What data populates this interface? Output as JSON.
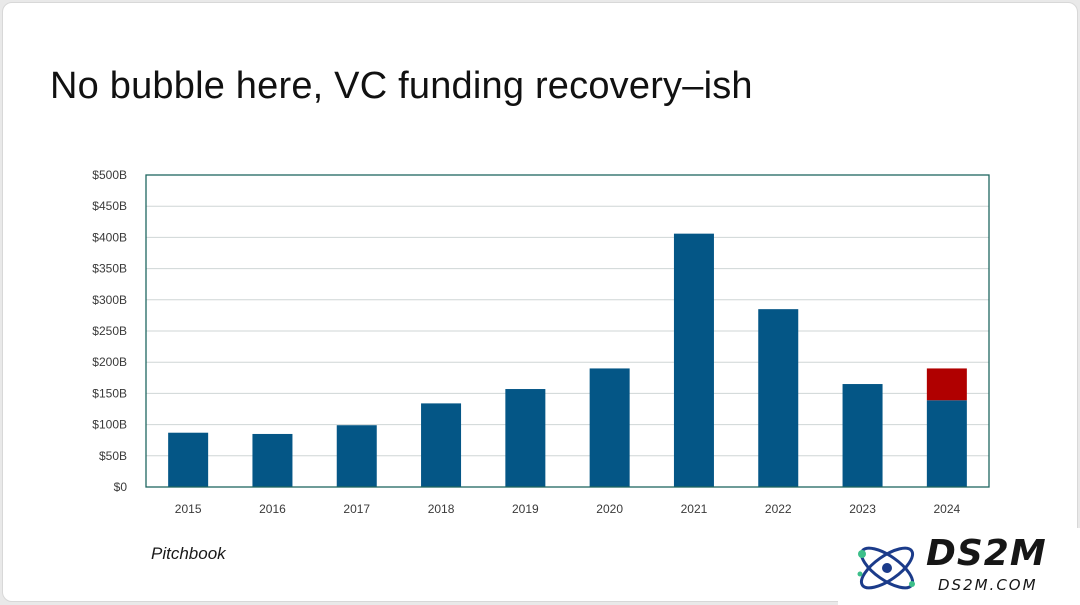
{
  "slide": {
    "title": "No bubble here, VC funding recovery–ish",
    "source": "Pitchbook"
  },
  "logo": {
    "name": "DS2M",
    "url_text": "DS2M.COM",
    "mark_icon": "atom-orbit-icon"
  },
  "colors": {
    "bar": "#045686",
    "highlight": "#b00000",
    "frame": "#1f6660",
    "grid": "#cfd6d6",
    "tick_text": "#3a3a3a"
  },
  "chart_data": {
    "type": "bar",
    "stacked": true,
    "title": "",
    "xlabel": "",
    "ylabel": "",
    "categories": [
      "2015",
      "2016",
      "2017",
      "2018",
      "2019",
      "2020",
      "2021",
      "2022",
      "2023",
      "2024"
    ],
    "series": [
      {
        "values": [
          87,
          85,
          99,
          134,
          157,
          190,
          406,
          285,
          165,
          139
        ]
      },
      {
        "values": [
          0,
          0,
          0,
          0,
          0,
          0,
          0,
          0,
          0,
          51
        ]
      }
    ],
    "ylim": [
      0,
      500
    ],
    "yticks": [
      0,
      50,
      100,
      150,
      200,
      250,
      300,
      350,
      400,
      450,
      500
    ],
    "ytick_labels": [
      "$0",
      "$50B",
      "$100B",
      "$150B",
      "$200B",
      "$250B",
      "$300B",
      "$350B",
      "$400B",
      "$450B",
      "$500B"
    ],
    "grid": true,
    "legend": "none"
  }
}
